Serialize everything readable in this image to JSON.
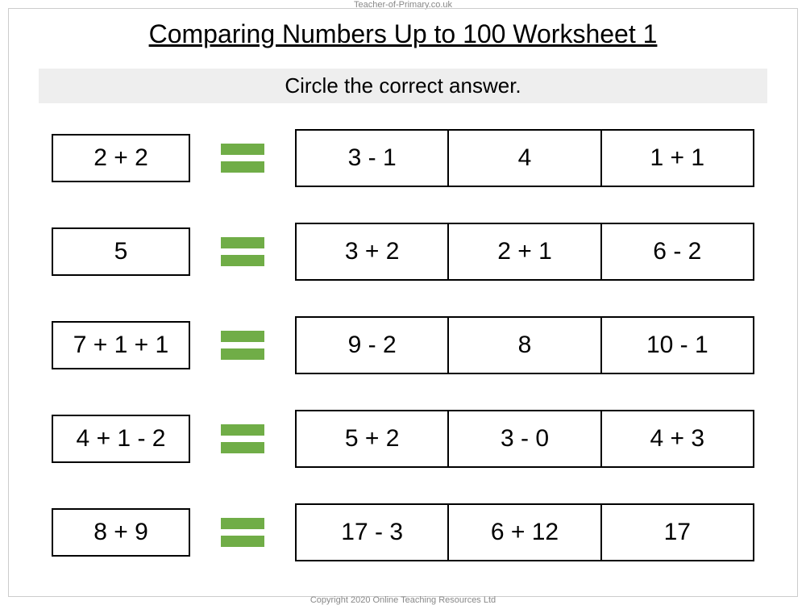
{
  "header": "Teacher-of-Primary.co.uk",
  "footer": "Copyright 2020 Online Teaching Resources Ltd",
  "title": "Comparing Numbers Up to 100 Worksheet 1",
  "instruction": "Circle the correct answer.",
  "styling": {
    "equals_bar_color": "#70ad47",
    "border_color": "#000000",
    "instruction_bg": "#eeeeee",
    "page_border_color": "#cccccc",
    "header_footer_color": "#888888",
    "title_fontsize": 32,
    "instruction_fontsize": 26,
    "cell_fontsize": 30,
    "left_box_width": 172,
    "left_box_height": 60,
    "answer_cell_height": 72,
    "row_gap": 44,
    "equals_bar_width": 54,
    "equals_bar_height": 14,
    "equals_bar_gap": 8
  },
  "rows": [
    {
      "left": "2 + 2",
      "answers": [
        "3 - 1",
        "4",
        "1 + 1"
      ]
    },
    {
      "left": "5",
      "answers": [
        "3 + 2",
        "2 + 1",
        "6 - 2"
      ]
    },
    {
      "left": "7 + 1 + 1",
      "answers": [
        "9 - 2",
        "8",
        "10 - 1"
      ]
    },
    {
      "left": "4 + 1 - 2",
      "answers": [
        "5 + 2",
        "3 - 0",
        "4 + 3"
      ]
    },
    {
      "left": "8 + 9",
      "answers": [
        "17 - 3",
        "6 + 12",
        "17"
      ]
    }
  ]
}
